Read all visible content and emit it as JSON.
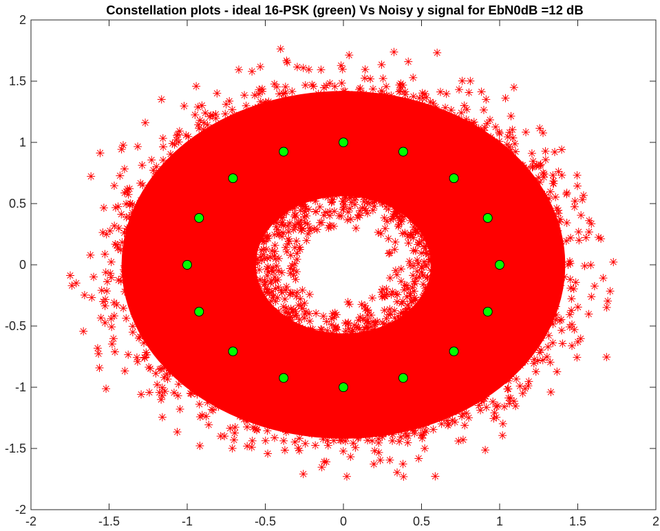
{
  "chart_data": {
    "type": "scatter",
    "title": "Constellation plots - ideal 16-PSK (green) Vs Noisy y signal for EbN0dB =12 dB",
    "xlabel": "",
    "ylabel": "",
    "xlim": [
      -2,
      2
    ],
    "ylim": [
      -2,
      2
    ],
    "grid": false,
    "x_ticks": [
      -2,
      -1.5,
      -1,
      -0.5,
      0,
      0.5,
      1,
      1.5,
      2
    ],
    "y_ticks": [
      -2,
      -1.5,
      -1,
      -0.5,
      0,
      0.5,
      1,
      1.5,
      2
    ],
    "x_tick_labels": [
      "-2",
      "-1.5",
      "-1",
      "-0.5",
      "0",
      "0.5",
      "1",
      "1.5",
      "2"
    ],
    "y_tick_labels": [
      "-2",
      "-1.5",
      "-1",
      "-0.5",
      "0",
      "0.5",
      "1",
      "1.5",
      "2"
    ],
    "series": [
      {
        "name": "Noisy y signal",
        "marker": "asterisk",
        "color": "#ff0000",
        "distribution": {
          "kind": "noisy-ring",
          "ring_radius": 1.0,
          "radial_spread_sigma": 0.26,
          "inner_hole_radius": 0.3,
          "outer_extent_radius": 1.85,
          "sample_points_drawn": 9000
        }
      },
      {
        "name": "ideal 16-PSK",
        "marker": "circle",
        "color": "#00ff00",
        "edge_color": "#000000",
        "x": [
          1,
          0.9239,
          0.7071,
          0.3827,
          0,
          -0.3827,
          -0.7071,
          -0.9239,
          -1,
          -0.9239,
          -0.7071,
          -0.3827,
          0,
          0.3827,
          0.7071,
          0.9239
        ],
        "y": [
          0,
          0.3827,
          0.7071,
          0.9239,
          1,
          0.9239,
          0.7071,
          0.3827,
          0,
          -0.3827,
          -0.7071,
          -0.9239,
          -1,
          -0.9239,
          -0.7071,
          -0.3827
        ]
      }
    ]
  }
}
